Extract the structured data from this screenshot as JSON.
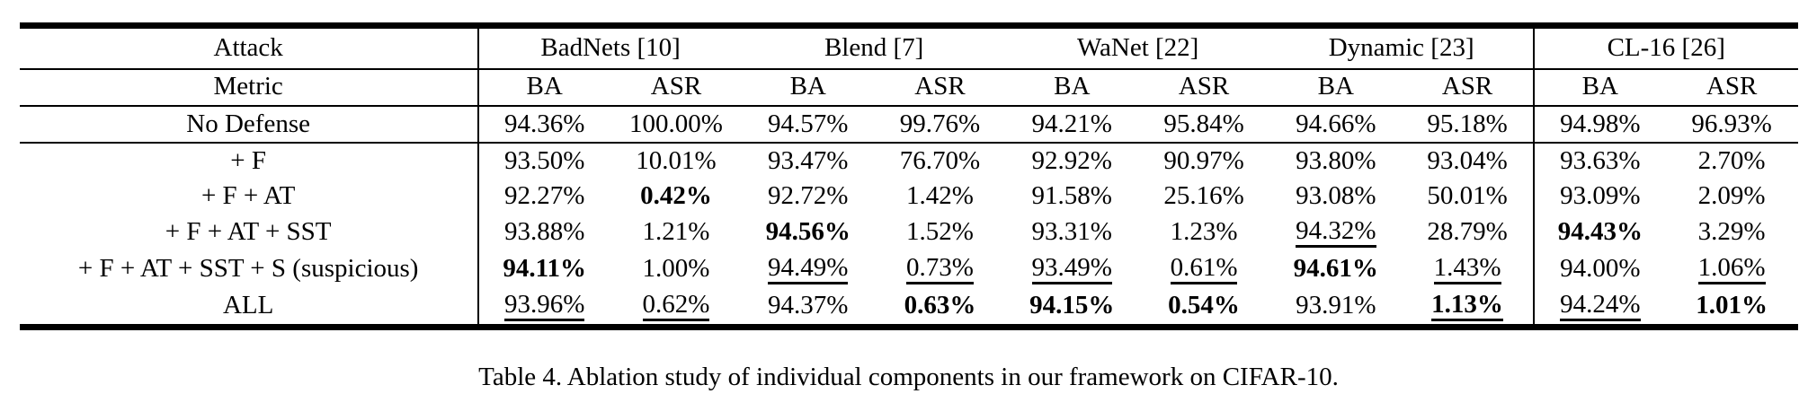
{
  "table": {
    "header": {
      "attack_label": "Attack",
      "metric_label": "Metric",
      "attacks": [
        "BadNets [10]",
        "Blend [7]",
        "WaNet [22]",
        "Dynamic [23]",
        "CL-16 [26]"
      ],
      "metrics": [
        "BA",
        "ASR"
      ]
    },
    "rows": [
      {
        "label": "No Defense",
        "rule_below": true,
        "cells": [
          {
            "v": "94.36%"
          },
          {
            "v": "100.00%"
          },
          {
            "v": "94.57%"
          },
          {
            "v": "99.76%"
          },
          {
            "v": "94.21%"
          },
          {
            "v": "95.84%"
          },
          {
            "v": "94.66%"
          },
          {
            "v": "95.18%"
          },
          {
            "v": "94.98%"
          },
          {
            "v": "96.93%"
          }
        ]
      },
      {
        "label": "+ F",
        "rule_below": false,
        "cells": [
          {
            "v": "93.50%"
          },
          {
            "v": "10.01%"
          },
          {
            "v": "93.47%"
          },
          {
            "v": "76.70%"
          },
          {
            "v": "92.92%"
          },
          {
            "v": "90.97%"
          },
          {
            "v": "93.80%"
          },
          {
            "v": "93.04%"
          },
          {
            "v": "93.63%"
          },
          {
            "v": "2.70%"
          }
        ]
      },
      {
        "label": "+ F + AT",
        "rule_below": false,
        "cells": [
          {
            "v": "92.27%"
          },
          {
            "v": "0.42%",
            "b": true
          },
          {
            "v": "92.72%"
          },
          {
            "v": "1.42%"
          },
          {
            "v": "91.58%"
          },
          {
            "v": "25.16%"
          },
          {
            "v": "93.08%"
          },
          {
            "v": "50.01%"
          },
          {
            "v": "93.09%"
          },
          {
            "v": "2.09%"
          }
        ]
      },
      {
        "label": "+ F + AT + SST",
        "rule_below": false,
        "cells": [
          {
            "v": "93.88%"
          },
          {
            "v": "1.21%"
          },
          {
            "v": "94.56%",
            "b": true
          },
          {
            "v": "1.52%"
          },
          {
            "v": "93.31%"
          },
          {
            "v": "1.23%"
          },
          {
            "v": "94.32%",
            "u": true
          },
          {
            "v": "28.79%"
          },
          {
            "v": "94.43%",
            "b": true
          },
          {
            "v": "3.29%"
          }
        ]
      },
      {
        "label": "+ F + AT + SST + S (suspicious)",
        "rule_below": false,
        "cells": [
          {
            "v": "94.11%",
            "b": true
          },
          {
            "v": "1.00%"
          },
          {
            "v": "94.49%",
            "u": true
          },
          {
            "v": "0.73%",
            "u": true
          },
          {
            "v": "93.49%",
            "u": true
          },
          {
            "v": "0.61%",
            "u": true
          },
          {
            "v": "94.61%",
            "b": true
          },
          {
            "v": "1.43%",
            "u": true
          },
          {
            "v": "94.00%"
          },
          {
            "v": "1.06%",
            "u": true
          }
        ]
      },
      {
        "label": "ALL",
        "rule_below": false,
        "cells": [
          {
            "v": "93.96%",
            "u": true
          },
          {
            "v": "0.62%",
            "u": true
          },
          {
            "v": "94.37%"
          },
          {
            "v": "0.63%",
            "b": true
          },
          {
            "v": "94.15%",
            "b": true
          },
          {
            "v": "0.54%",
            "b": true
          },
          {
            "v": "93.91%"
          },
          {
            "v": "1.13%",
            "b": true,
            "u": true
          },
          {
            "v": "94.24%",
            "u": true
          },
          {
            "v": "1.01%",
            "b": true
          }
        ]
      }
    ]
  },
  "caption": "Table 4. Ablation study of individual components in our framework on CIFAR-10."
}
